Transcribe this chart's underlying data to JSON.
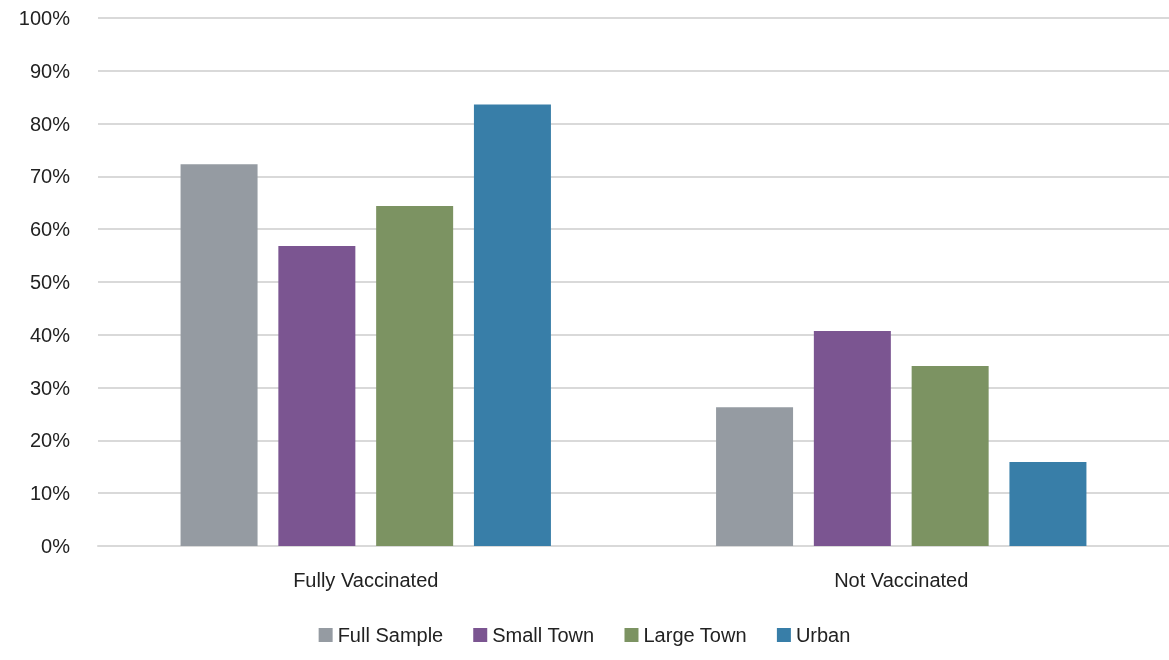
{
  "chart_data": {
    "type": "bar",
    "categories": [
      "Fully Vaccinated",
      "Not Vaccinated"
    ],
    "series": [
      {
        "name": "Full Sample",
        "color": "#959ba2",
        "values": [
          72.3,
          26.3
        ]
      },
      {
        "name": "Small Town",
        "color": "#7b5591",
        "values": [
          56.8,
          40.7
        ]
      },
      {
        "name": "Large Town",
        "color": "#7c9362",
        "values": [
          64.4,
          34.1
        ]
      },
      {
        "name": "Urban",
        "color": "#387ea8",
        "values": [
          83.6,
          15.9
        ]
      }
    ],
    "ylim": [
      0,
      100
    ],
    "yticks": [
      {
        "value": 0,
        "label": "0%"
      },
      {
        "value": 10,
        "label": "10%"
      },
      {
        "value": 20,
        "label": "20%"
      },
      {
        "value": 30,
        "label": "30%"
      },
      {
        "value": 40,
        "label": "40%"
      },
      {
        "value": 50,
        "label": "50%"
      },
      {
        "value": 60,
        "label": "60%"
      },
      {
        "value": 70,
        "label": "70%"
      },
      {
        "value": 80,
        "label": "80%"
      },
      {
        "value": 90,
        "label": "90%"
      },
      {
        "value": 100,
        "label": "100%"
      }
    ],
    "grid": "y",
    "legend": "bottom"
  }
}
